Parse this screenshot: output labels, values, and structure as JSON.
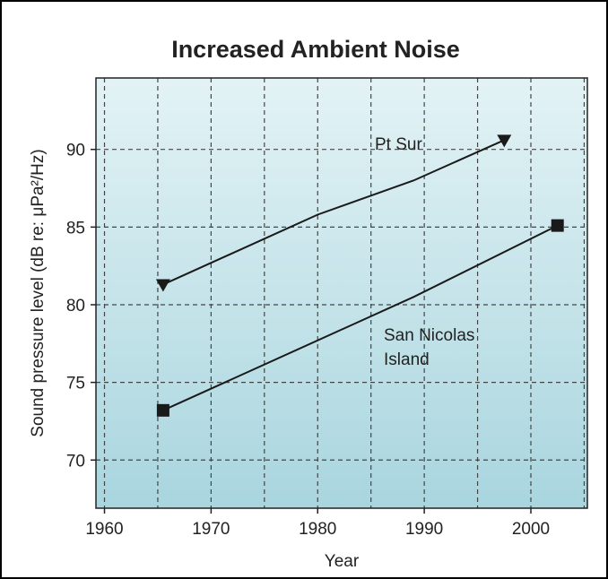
{
  "chart_data": {
    "type": "line",
    "title": "Increased Ambient Noise",
    "xlabel": "Year",
    "ylabel": "Sound pressure level (dB re: μPa²/Hz)",
    "xlim": [
      1959.2,
      2005.3
    ],
    "xticks": [
      1960,
      1970,
      1980,
      1990,
      2000
    ],
    "ylim": [
      66.9,
      94.6
    ],
    "yticks": [
      70,
      75,
      80,
      85,
      90
    ],
    "grid": true,
    "grid_step_x": 5,
    "series": [
      {
        "name": "Pt Sur",
        "color": "#1a1a1a",
        "marker": "triangle-down",
        "x": [
          1965.5,
          1980,
          1989,
          1997.5
        ],
        "values": [
          81.3,
          85.8,
          88,
          90.6
        ]
      },
      {
        "name": "San Nicolas Island",
        "color": "#1a1a1a",
        "marker": "square",
        "x": [
          1965.5,
          1989,
          2002.5
        ],
        "values": [
          73.2,
          80.5,
          85.1
        ]
      }
    ]
  }
}
